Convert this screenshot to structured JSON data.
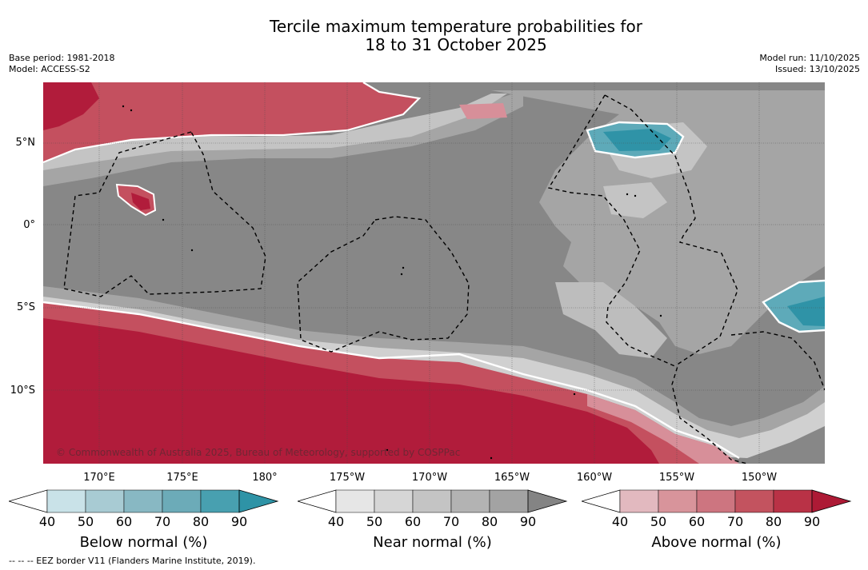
{
  "title": {
    "line1": "Tercile maximum temperature probabilities for",
    "line2": "18 to 31 October 2025"
  },
  "meta": {
    "base_period": "Base period: 1981-2018",
    "model": "Model: ACCESS-S2",
    "model_run": "Model run: 11/10/2025",
    "issued": "Issued: 13/10/2025"
  },
  "map": {
    "copyright": "© Commonwealth of Australia 2025, Bureau of Meteorology, supported by COSPPac",
    "lat_labels": [
      "5°N",
      "0°",
      "5°S",
      "10°S"
    ],
    "lon_labels": [
      "170°E",
      "175°E",
      "180°",
      "175°W",
      "170°W",
      "165°W",
      "160°W",
      "155°W",
      "150°W"
    ]
  },
  "legend": {
    "below": {
      "label": "Below normal (%)",
      "ticks": [
        "40",
        "50",
        "60",
        "70",
        "80",
        "90"
      ],
      "colors": [
        "#c9e2e8",
        "#a8cbd3",
        "#88b8c3",
        "#6cabb8",
        "#48a0b0",
        "#2e93a6"
      ]
    },
    "near": {
      "label": "Near normal (%)",
      "ticks": [
        "40",
        "50",
        "60",
        "70",
        "80",
        "90"
      ],
      "colors": [
        "#e6e6e6",
        "#d6d6d6",
        "#c4c4c4",
        "#b3b3b3",
        "#a3a3a3",
        "#848484"
      ]
    },
    "above": {
      "label": "Above normal (%)",
      "ticks": [
        "40",
        "50",
        "60",
        "70",
        "80",
        "90"
      ],
      "colors": [
        "#e2b9bf",
        "#d8949b",
        "#cd7580",
        "#c3535f",
        "#b93246",
        "#ad1a35"
      ]
    },
    "eez_note": "--  --  -- EEZ border V11 (Flanders Marine Institute, 2019)."
  },
  "colors": {
    "near_dark": "#878787",
    "near_mid": "#a5a5a5",
    "near_light": "#c4c4c4",
    "above_dark": "#b11c3b",
    "above_mid": "#c4505f",
    "above_light": "#d78f99",
    "below_dark": "#2f93a7",
    "below_mid": "#5eaab9"
  }
}
